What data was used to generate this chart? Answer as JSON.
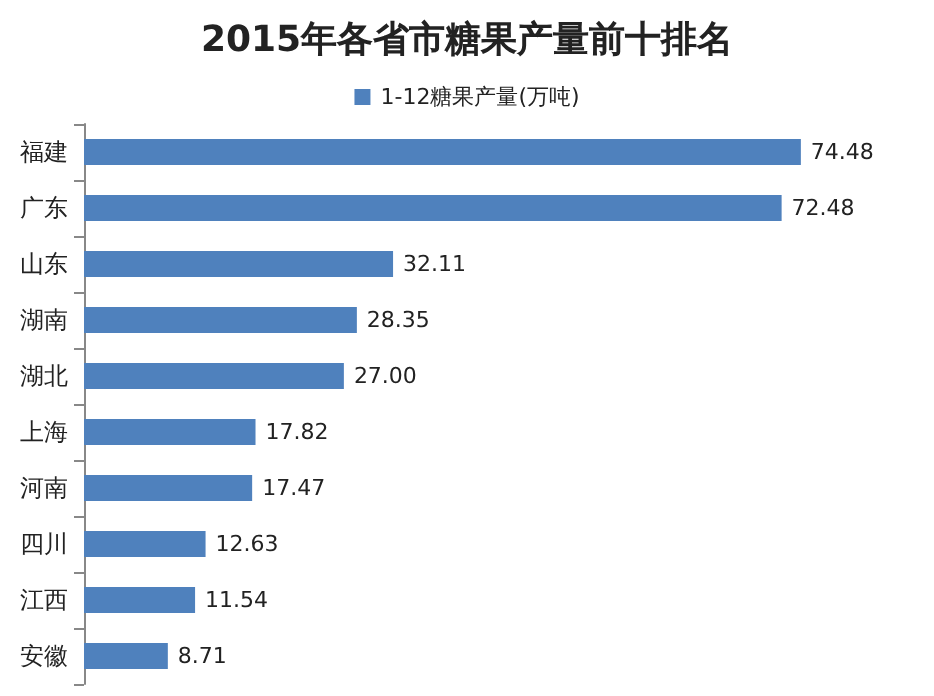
{
  "chart_data": {
    "type": "bar",
    "orientation": "horizontal",
    "title": "2015年各省市糖果产量前十排名",
    "categories": [
      "福建",
      "广东",
      "山东",
      "湖南",
      "湖北",
      "上海",
      "河南",
      "四川",
      "江西",
      "安徽"
    ],
    "series": [
      {
        "name": "1-12糖果产量(万吨)",
        "color": "#4f81bd",
        "values": [
          74.48,
          72.48,
          32.11,
          28.35,
          27.0,
          17.82,
          17.47,
          12.63,
          11.54,
          8.71
        ],
        "value_labels": [
          "74.48",
          "72.48",
          "32.11",
          "28.35",
          "27.00",
          "17.82",
          "17.47",
          "12.63",
          "11.54",
          "8.71"
        ]
      }
    ],
    "legend": "top"
  }
}
